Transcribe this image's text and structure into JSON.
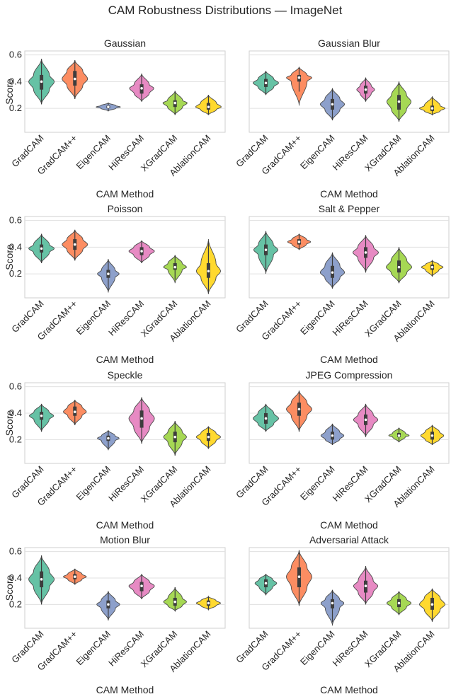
{
  "figure_title": "CAM Robustness Distributions — ImageNet",
  "chart_data": {
    "type": "violin",
    "title": "CAM Robustness Distributions — ImageNet",
    "xlabel": "CAM Method",
    "ylabel": "Score",
    "ylim": [
      0.02,
      0.63
    ],
    "yticks": [
      0.2,
      0.4,
      0.6
    ],
    "ytick_labels": [
      "0.2",
      "0.4",
      "0.6"
    ],
    "categories": [
      "GradCAM",
      "GradCAM++",
      "EigenCAM",
      "HiResCAM",
      "XGradCAM",
      "AblationCAM"
    ],
    "colors": [
      "#66c2a5",
      "#fc8d62",
      "#8da0cb",
      "#e78ac3",
      "#a6d854",
      "#ffd92f"
    ],
    "grid": "horizontal",
    "panels": [
      {
        "title": "Gaussian",
        "violins": [
          {
            "min": 0.23,
            "q1": 0.34,
            "median": 0.4,
            "q3": 0.45,
            "max": 0.57,
            "w": 1.0
          },
          {
            "min": 0.27,
            "q1": 0.37,
            "median": 0.42,
            "q3": 0.48,
            "max": 0.56,
            "w": 1.0
          },
          {
            "min": 0.18,
            "q1": 0.2,
            "median": 0.21,
            "q3": 0.22,
            "max": 0.24,
            "w": 0.95
          },
          {
            "min": 0.25,
            "q1": 0.31,
            "median": 0.35,
            "q3": 0.38,
            "max": 0.46,
            "w": 0.95
          },
          {
            "min": 0.15,
            "q1": 0.21,
            "median": 0.24,
            "q3": 0.26,
            "max": 0.33,
            "w": 0.95
          },
          {
            "min": 0.15,
            "q1": 0.19,
            "median": 0.21,
            "q3": 0.24,
            "max": 0.3,
            "w": 1.0
          }
        ]
      },
      {
        "title": "Gaussian Blur",
        "violins": [
          {
            "min": 0.3,
            "q1": 0.36,
            "median": 0.39,
            "q3": 0.42,
            "max": 0.48,
            "w": 1.0
          },
          {
            "min": 0.22,
            "q1": 0.4,
            "median": 0.43,
            "q3": 0.45,
            "max": 0.51,
            "w": 1.0
          },
          {
            "min": 0.11,
            "q1": 0.19,
            "median": 0.23,
            "q3": 0.27,
            "max": 0.35,
            "w": 0.95
          },
          {
            "min": 0.25,
            "q1": 0.31,
            "median": 0.34,
            "q3": 0.37,
            "max": 0.43,
            "w": 0.7
          },
          {
            "min": 0.1,
            "q1": 0.19,
            "median": 0.25,
            "q3": 0.3,
            "max": 0.4,
            "w": 0.95
          },
          {
            "min": 0.15,
            "q1": 0.18,
            "median": 0.2,
            "q3": 0.22,
            "max": 0.29,
            "w": 1.0
          }
        ]
      },
      {
        "title": "Poisson",
        "violins": [
          {
            "min": 0.28,
            "q1": 0.36,
            "median": 0.39,
            "q3": 0.42,
            "max": 0.5,
            "w": 1.0
          },
          {
            "min": 0.3,
            "q1": 0.38,
            "median": 0.42,
            "q3": 0.46,
            "max": 0.53,
            "w": 1.0
          },
          {
            "min": 0.06,
            "q1": 0.17,
            "median": 0.2,
            "q3": 0.23,
            "max": 0.31,
            "w": 0.85
          },
          {
            "min": 0.28,
            "q1": 0.34,
            "median": 0.37,
            "q3": 0.4,
            "max": 0.45,
            "w": 1.0
          },
          {
            "min": 0.13,
            "q1": 0.23,
            "median": 0.25,
            "q3": 0.28,
            "max": 0.34,
            "w": 0.9
          },
          {
            "min": 0.05,
            "q1": 0.17,
            "median": 0.22,
            "q3": 0.28,
            "max": 0.46,
            "w": 0.95
          }
        ]
      },
      {
        "title": "Salt & Pepper",
        "violins": [
          {
            "min": 0.2,
            "q1": 0.34,
            "median": 0.38,
            "q3": 0.42,
            "max": 0.52,
            "w": 0.95
          },
          {
            "min": 0.38,
            "q1": 0.42,
            "median": 0.44,
            "q3": 0.46,
            "max": 0.5,
            "w": 0.9
          },
          {
            "min": 0.09,
            "q1": 0.17,
            "median": 0.21,
            "q3": 0.26,
            "max": 0.36,
            "w": 0.95
          },
          {
            "min": 0.21,
            "q1": 0.32,
            "median": 0.36,
            "q3": 0.4,
            "max": 0.49,
            "w": 1.0
          },
          {
            "min": 0.13,
            "q1": 0.21,
            "median": 0.25,
            "q3": 0.3,
            "max": 0.4,
            "w": 1.0
          },
          {
            "min": 0.18,
            "q1": 0.23,
            "median": 0.25,
            "q3": 0.27,
            "max": 0.3,
            "w": 0.85
          }
        ]
      },
      {
        "title": "Speckle",
        "violins": [
          {
            "min": 0.26,
            "q1": 0.35,
            "median": 0.38,
            "q3": 0.41,
            "max": 0.47,
            "w": 0.95
          },
          {
            "min": 0.31,
            "q1": 0.38,
            "median": 0.41,
            "q3": 0.45,
            "max": 0.5,
            "w": 0.9
          },
          {
            "min": 0.12,
            "q1": 0.19,
            "median": 0.21,
            "q3": 0.23,
            "max": 0.27,
            "w": 0.85
          },
          {
            "min": 0.17,
            "q1": 0.29,
            "median": 0.36,
            "q3": 0.42,
            "max": 0.52,
            "w": 1.0
          },
          {
            "min": 0.08,
            "q1": 0.18,
            "median": 0.22,
            "q3": 0.26,
            "max": 0.34,
            "w": 0.9
          },
          {
            "min": 0.13,
            "q1": 0.19,
            "median": 0.22,
            "q3": 0.25,
            "max": 0.3,
            "w": 0.95
          }
        ]
      },
      {
        "title": "JPEG Compression",
        "violins": [
          {
            "min": 0.26,
            "q1": 0.32,
            "median": 0.36,
            "q3": 0.4,
            "max": 0.47,
            "w": 1.0
          },
          {
            "min": 0.26,
            "q1": 0.38,
            "median": 0.43,
            "q3": 0.48,
            "max": 0.57,
            "w": 1.0
          },
          {
            "min": 0.16,
            "q1": 0.2,
            "median": 0.23,
            "q3": 0.26,
            "max": 0.32,
            "w": 0.9
          },
          {
            "min": 0.22,
            "q1": 0.31,
            "median": 0.35,
            "q3": 0.39,
            "max": 0.47,
            "w": 0.95
          },
          {
            "min": 0.18,
            "q1": 0.22,
            "median": 0.23,
            "q3": 0.25,
            "max": 0.29,
            "w": 0.8
          },
          {
            "min": 0.16,
            "q1": 0.2,
            "median": 0.23,
            "q3": 0.26,
            "max": 0.31,
            "w": 0.9
          }
        ]
      },
      {
        "title": "Motion Blur",
        "violins": [
          {
            "min": 0.2,
            "q1": 0.33,
            "median": 0.39,
            "q3": 0.45,
            "max": 0.57,
            "w": 1.0
          },
          {
            "min": 0.35,
            "q1": 0.39,
            "median": 0.41,
            "q3": 0.43,
            "max": 0.47,
            "w": 0.9
          },
          {
            "min": 0.08,
            "q1": 0.17,
            "median": 0.2,
            "q3": 0.23,
            "max": 0.3,
            "w": 0.9
          },
          {
            "min": 0.24,
            "q1": 0.3,
            "median": 0.34,
            "q3": 0.37,
            "max": 0.43,
            "w": 1.0
          },
          {
            "min": 0.15,
            "q1": 0.19,
            "median": 0.22,
            "q3": 0.25,
            "max": 0.33,
            "w": 0.9
          },
          {
            "min": 0.16,
            "q1": 0.19,
            "median": 0.21,
            "q3": 0.23,
            "max": 0.26,
            "w": 0.95
          }
        ]
      },
      {
        "title": "Adversarial Attack",
        "violins": [
          {
            "min": 0.27,
            "q1": 0.33,
            "median": 0.36,
            "q3": 0.39,
            "max": 0.43,
            "w": 0.85
          },
          {
            "min": 0.19,
            "q1": 0.33,
            "median": 0.41,
            "q3": 0.48,
            "max": 0.61,
            "w": 1.0
          },
          {
            "min": 0.04,
            "q1": 0.17,
            "median": 0.21,
            "q3": 0.24,
            "max": 0.31,
            "w": 0.9
          },
          {
            "min": 0.2,
            "q1": 0.29,
            "median": 0.34,
            "q3": 0.38,
            "max": 0.49,
            "w": 0.95
          },
          {
            "min": 0.12,
            "q1": 0.18,
            "median": 0.21,
            "q3": 0.24,
            "max": 0.3,
            "w": 0.95
          },
          {
            "min": 0.07,
            "q1": 0.16,
            "median": 0.2,
            "q3": 0.25,
            "max": 0.32,
            "w": 1.0
          }
        ]
      }
    ]
  }
}
